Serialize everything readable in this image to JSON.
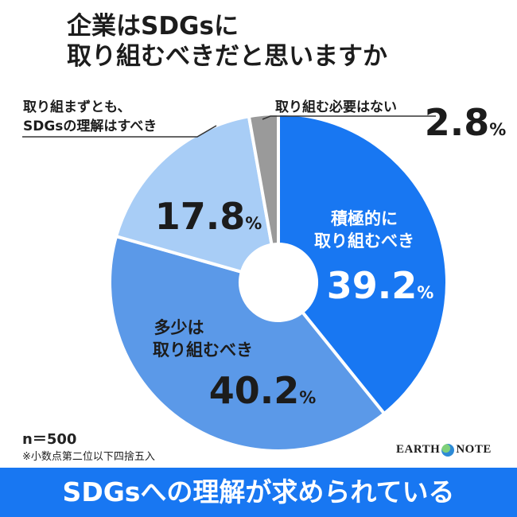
{
  "title": {
    "line1": "企業はSDGsに",
    "line2": "取り組むべきだと思いますか"
  },
  "chart_data": {
    "type": "pie",
    "title": "企業はSDGsに取り組むべきだと思いますか",
    "slices": [
      {
        "label": "積極的に取り組むべき",
        "label_lines": [
          "積極的に",
          "取り組むべき"
        ],
        "value": 39.2,
        "value_text": "39.2",
        "color": "#1877f2"
      },
      {
        "label": "多少は取り組むべき",
        "label_lines": [
          "多少は",
          "取り組むべき"
        ],
        "value": 40.2,
        "value_text": "40.2",
        "color": "#5b99e8"
      },
      {
        "label": "取り組まずとも、SDGsの理解はすべき",
        "label_lines": [
          "取り組まずとも、",
          "SDGsの理解はすべき"
        ],
        "value": 17.8,
        "value_text": "17.8",
        "color": "#a8cdf6"
      },
      {
        "label": "取り組む必要はない",
        "label_lines": [
          "取り組む必要はない"
        ],
        "value": 2.8,
        "value_text": "2.8",
        "color": "#9a9a9a"
      }
    ],
    "unit": "%"
  },
  "footer": {
    "n": "n＝500",
    "note": "※小数点第二位以下四捨五入"
  },
  "logo": {
    "left": "EARTH",
    "right": "NOTE"
  },
  "banner": "SDGsへの理解が求められている"
}
